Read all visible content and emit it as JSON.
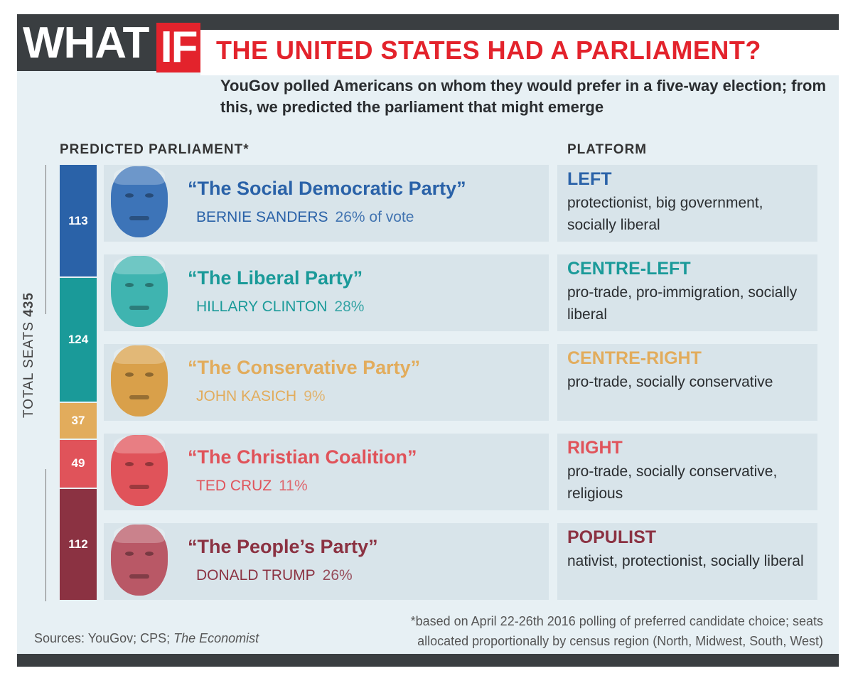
{
  "header": {
    "what": "WHAT",
    "if": "IF",
    "headline": "THE UNITED STATES HAD A PARLIAMENT?",
    "subtitle": "YouGov polled Americans on whom they would prefer in a five-way election; from this, we predicted the parliament that might emerge"
  },
  "sections": {
    "parliament": "PREDICTED PARLIAMENT*",
    "platform": "PLATFORM"
  },
  "axis": {
    "label_prefix": "TOTAL SEATS",
    "total": "435"
  },
  "colors": {
    "frame_bg": "#e7f0f4",
    "row_bg": "#d8e4ea",
    "dark_bar": "#3a3e41",
    "accent_red": "#e3232c"
  },
  "chart_data": {
    "type": "bar",
    "stacked": true,
    "total_seats": 435,
    "categories": [
      "The Social Democratic Party",
      "The Liberal Party",
      "The Conservative Party",
      "The Christian Coalition",
      "The People's Party"
    ],
    "values": [
      113,
      124,
      37,
      49,
      112
    ],
    "colors": [
      "#2a62a8",
      "#1a9a99",
      "#e2ac5c",
      "#e0535a",
      "#8b3242"
    ]
  },
  "parties": [
    {
      "seats": "113",
      "name": "“The Social Democratic Party”",
      "candidate": "BERNIE SANDERS",
      "share": "26% of vote",
      "platform_head": "LEFT",
      "platform_text": "protectionist, big government, socially liberal",
      "color": "#2a62a8",
      "face_color": "#3d74b8"
    },
    {
      "seats": "124",
      "name": "“The Liberal Party”",
      "candidate": "HILLARY CLINTON",
      "share": "28%",
      "platform_head": "CENTRE-LEFT",
      "platform_text": "pro-trade, pro-immigration, socially liberal",
      "color": "#1a9a99",
      "face_color": "#3fb4b0"
    },
    {
      "seats": "37",
      "name": "“The Conservative Party”",
      "candidate": "JOHN KASICH",
      "share": "9%",
      "platform_head": "CENTRE-RIGHT",
      "platform_text": "pro-trade, socially conservative",
      "color": "#e2ac5c",
      "face_color": "#d9a04a"
    },
    {
      "seats": "49",
      "name": "“The Christian Coalition”",
      "candidate": "TED CRUZ",
      "share": "11%",
      "platform_head": "RIGHT",
      "platform_text": "pro-trade, socially conservative, religious",
      "color": "#e0535a",
      "face_color": "#e0535a"
    },
    {
      "seats": "112",
      "name": "“The People’s Party”",
      "candidate": "DONALD TRUMP",
      "share": "26%",
      "platform_head": "POPULIST",
      "platform_text": "nativist, protectionist, socially liberal",
      "color": "#8b3242",
      "face_color": "#b95866"
    }
  ],
  "footer": {
    "sources_prefix": "Sources: YouGov; CPS; ",
    "sources_italic": "The Economist",
    "note": "*based on April 22-26th 2016 polling of preferred candidate choice; seats allocated proportionally by census region (North, Midwest, South, West)"
  }
}
